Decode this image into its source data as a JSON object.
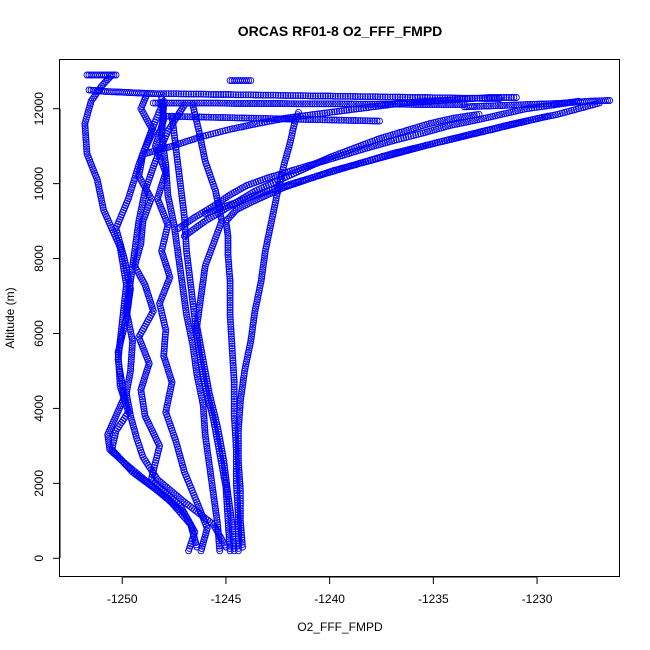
{
  "chart_data": {
    "type": "scatter",
    "title": "ORCAS RF01-8 O2_FFF_FMPD",
    "xlabel": "O2_FFF_FMPD",
    "ylabel": "Altitude (m)",
    "xlim": [
      -1253,
      -1226
    ],
    "ylim": [
      -500,
      13300
    ],
    "x_ticks": [
      -1250,
      -1245,
      -1240,
      -1235,
      -1230
    ],
    "y_ticks": [
      0,
      2000,
      4000,
      6000,
      8000,
      10000,
      12000
    ],
    "grid": false,
    "legend": "none",
    "marker": "open-circle",
    "colors": {
      "points": "#0000ff",
      "axis": "#000000"
    },
    "series": [
      {
        "x": [
          -1246.8,
          -1246.5,
          -1247.2,
          -1248.6,
          -1248.2,
          -1248.9,
          -1249.1,
          -1248.7,
          -1249.2,
          -1248.5,
          -1248.9,
          -1249.4,
          -1249.1,
          -1249.0,
          -1248.6,
          -1249.2,
          -1249.0,
          -1248.5,
          -1249.1,
          -1248.8
        ],
        "y": [
          200,
          700,
          1400,
          2100,
          3000,
          3800,
          4500,
          5200,
          5900,
          6600,
          7300,
          7800,
          8400,
          9000,
          9600,
          10200,
          10800,
          11400,
          12000,
          12400
        ]
      },
      {
        "x": [
          -1246.2,
          -1245.9,
          -1246.4,
          -1247.0,
          -1247.4,
          -1247.9,
          -1247.6,
          -1248.0,
          -1247.9,
          -1248.2,
          -1247.7,
          -1248.1,
          -1247.8,
          -1248.3,
          -1247.9,
          -1248.4,
          -1248.0,
          -1248.1
        ],
        "y": [
          200,
          800,
          1500,
          2300,
          3100,
          3900,
          4700,
          5400,
          6100,
          6800,
          7500,
          8200,
          8900,
          9600,
          10300,
          11000,
          11700,
          12300
        ]
      },
      {
        "x": [
          -1245.3,
          -1245.4,
          -1245.6,
          -1245.8,
          -1246.0,
          -1246.1,
          -1246.4,
          -1246.6,
          -1246.9,
          -1247.1,
          -1247.3,
          -1247.5,
          -1247.8,
          -1247.9,
          -1248.1,
          -1248.0
        ],
        "y": [
          200,
          900,
          1700,
          2500,
          3300,
          4100,
          4900,
          5700,
          6500,
          7300,
          8100,
          8900,
          9700,
          10500,
          11300,
          12100
        ]
      },
      {
        "x": [
          -1244.8,
          -1244.9,
          -1245.0,
          -1245.3,
          -1245.6,
          -1246.0,
          -1246.3,
          -1246.5,
          -1246.7,
          -1246.9,
          -1247.0,
          -1247.2,
          -1247.4,
          -1247.6
        ],
        "y": [
          200,
          1000,
          1900,
          2800,
          3700,
          4600,
          5500,
          6400,
          7300,
          8200,
          9100,
          10000,
          10900,
          11800
        ]
      },
      {
        "x": [
          -1244.6,
          -1244.7,
          -1244.9,
          -1245.1,
          -1245.4,
          -1245.8,
          -1246.1,
          -1246.4,
          -1246.2,
          -1246.0,
          -1245.6,
          -1245.2,
          -1245.5,
          -1246.0,
          -1246.3,
          -1246.6
        ],
        "y": [
          200,
          900,
          1700,
          2600,
          3500,
          4400,
          5300,
          6200,
          7000,
          7800,
          8400,
          9000,
          9800,
          10600,
          11400,
          12100
        ]
      },
      {
        "x": [
          -1245.0,
          -1245.6,
          -1247.0,
          -1248.3,
          -1249.0,
          -1249.3,
          -1249.6,
          -1249.8,
          -1249.6,
          -1249.5,
          -1249.8,
          -1249.6,
          -1249.4,
          -1249.2,
          -1248.9,
          -1248.4,
          -1247.8,
          -1247.0
        ],
        "y": [
          300,
          900,
          1500,
          2100,
          2700,
          3200,
          3800,
          4400,
          5000,
          5800,
          6600,
          7400,
          8200,
          9000,
          9800,
          10600,
          11400,
          12100
        ]
      },
      {
        "x": [
          -1246.4,
          -1246.7,
          -1247.8,
          -1249.5,
          -1250.5,
          -1250.3,
          -1249.7,
          -1250.1,
          -1250.2,
          -1249.8,
          -1249.6,
          -1249.9,
          -1250.3,
          -1249.7,
          -1249.2,
          -1248.6,
          -1248.0
        ],
        "y": [
          300,
          900,
          1600,
          2300,
          2900,
          3400,
          3900,
          4600,
          5500,
          6400,
          7200,
          8000,
          8800,
          9600,
          10500,
          11400,
          12200
        ]
      },
      {
        "x": [
          -1247.0,
          -1248.5,
          -1249.8,
          -1250.6,
          -1250.7,
          -1250.3,
          -1249.9,
          -1250.2,
          -1250.0,
          -1249.8,
          -1250.1,
          -1250.9,
          -1251.2,
          -1251.7,
          -1251.8,
          -1251.5,
          -1251.0,
          -1250.5
        ],
        "y": [
          1200,
          1900,
          2500,
          2900,
          3300,
          3800,
          4300,
          5300,
          6300,
          7300,
          8300,
          9300,
          10100,
          10800,
          11600,
          12200,
          12600,
          12900
        ]
      },
      {
        "x": [
          -1244.4,
          -1244.4,
          -1244.5,
          -1244.5,
          -1244.6,
          -1244.6,
          -1244.7,
          -1244.8,
          -1244.8,
          -1244.9,
          -1244.9,
          -1245.0,
          -1244.5,
          -1243.8,
          -1243.0,
          -1242.2,
          -1241.4,
          -1240.6,
          -1239.8,
          -1238.8,
          -1237.8,
          -1236.8,
          -1235.8,
          -1234.8,
          -1233.7,
          -1232.6,
          -1231.5,
          -1230.3,
          -1229.0,
          -1228.0,
          -1227.0
        ],
        "y": [
          200,
          1100,
          2000,
          2900,
          3800,
          4700,
          5600,
          6500,
          7400,
          8100,
          8600,
          9000,
          9300,
          9500,
          9700,
          9900,
          10050,
          10200,
          10350,
          10500,
          10650,
          10800,
          10950,
          11100,
          11250,
          11400,
          11550,
          11700,
          11850,
          12000,
          12150
        ]
      },
      {
        "x": [
          -1247.3,
          -1246.5,
          -1245.6,
          -1244.8,
          -1244.0,
          -1243.0,
          -1241.8,
          -1240.6,
          -1239.4,
          -1238.2,
          -1236.9,
          -1235.5,
          -1234.2,
          -1232.9,
          -1231.7,
          -1230.5,
          -1229.2,
          -1228.0
        ],
        "y": [
          8800,
          9100,
          9400,
          9700,
          9950,
          10150,
          10350,
          10550,
          10750,
          10950,
          11150,
          11350,
          11550,
          11700,
          11850,
          12000,
          12100,
          12200
        ]
      },
      {
        "x": [
          -1248.9,
          -1247.6,
          -1246.2,
          -1244.8,
          -1243.5,
          -1242.1,
          -1240.7,
          -1239.3,
          -1237.9,
          -1236.5,
          -1235.1,
          -1233.7,
          -1232.3,
          -1231.0
        ],
        "y": [
          10800,
          11000,
          11250,
          11450,
          11600,
          11750,
          11850,
          11950,
          12050,
          12150,
          12200,
          12250,
          12300,
          12300
        ]
      },
      {
        "x": [
          -1247.0,
          -1246.0,
          -1244.8,
          -1243.6,
          -1242.4,
          -1241.2,
          -1240.0,
          -1238.8,
          -1237.6,
          -1236.4,
          -1235.2,
          -1234.0,
          -1232.8
        ],
        "y": [
          8600,
          9000,
          9400,
          9800,
          10100,
          10400,
          10700,
          10950,
          11200,
          11400,
          11600,
          11750,
          11850
        ]
      },
      {
        "x": [
          -1246.0,
          -1244.5,
          -1243.0,
          -1241.5,
          -1240.0,
          -1238.5,
          -1237.0,
          -1235.5,
          -1234.0,
          -1232.5,
          -1231.0,
          -1229.5
        ],
        "y": [
          9200,
          9500,
          9800,
          10050,
          10300,
          10550,
          10800,
          11000,
          11200,
          11400,
          11600,
          11800
        ]
      },
      {
        "x": [
          -1244.2,
          -1244.3,
          -1244.3,
          -1244.4,
          -1244.4,
          -1244.3,
          -1244.1,
          -1243.8,
          -1243.6,
          -1243.3,
          -1243.1,
          -1242.8,
          -1242.5,
          -1242.2,
          -1241.9,
          -1241.7,
          -1241.5
        ],
        "y": [
          300,
          1000,
          1800,
          2600,
          3400,
          4200,
          5000,
          5800,
          6600,
          7400,
          8200,
          9000,
          9800,
          10500,
          11100,
          11600,
          11900
        ]
      },
      {
        "x": [
          -1251.6,
          -1251.2,
          -1250.8,
          -1250.4,
          -1250.0,
          -1249.6,
          -1249.2,
          -1248.8,
          -1248.4,
          -1248.0,
          -1247.4,
          -1246.8,
          -1246.2,
          -1245.6,
          -1245.0,
          -1244.4,
          -1243.8,
          -1243.2,
          -1242.6,
          -1242.0,
          -1241.4,
          -1240.8,
          -1240.2,
          -1239.6,
          -1239.0,
          -1238.4,
          -1237.8,
          -1237.2,
          -1236.6,
          -1236.0,
          -1235.4,
          -1234.8,
          -1234.2,
          -1233.6,
          -1233.0,
          -1232.4,
          -1231.8
        ],
        "y": [
          12500,
          12480,
          12460,
          12450,
          12440,
          12430,
          12420,
          12410,
          12400,
          12400,
          12400,
          12390,
          12390,
          12380,
          12380,
          12370,
          12370,
          12360,
          12360,
          12350,
          12350,
          12340,
          12340,
          12330,
          12330,
          12320,
          12320,
          12310,
          12310,
          12300,
          12300,
          12290,
          12290,
          12280,
          12280,
          12270,
          12270
        ]
      },
      {
        "x": [
          -1248.0,
          -1247.2,
          -1246.4,
          -1245.6,
          -1244.8,
          -1244.0,
          -1243.2,
          -1242.4,
          -1241.6,
          -1240.8,
          -1240.0,
          -1239.2,
          -1238.4,
          -1237.6
        ],
        "y": [
          11800,
          11790,
          11780,
          11770,
          11760,
          11750,
          11740,
          11730,
          11720,
          11710,
          11700,
          11690,
          11680,
          11670
        ]
      },
      {
        "x": [
          -1248.5,
          -1247.5,
          -1246.5,
          -1245.5,
          -1244.5,
          -1243.5,
          -1242.5,
          -1241.5,
          -1240.5,
          -1239.5,
          -1238.5,
          -1237.5,
          -1236.5,
          -1235.5,
          -1234.5,
          -1233.5
        ],
        "y": [
          12150,
          12150,
          12150,
          12150,
          12140,
          12140,
          12140,
          12130,
          12130,
          12130,
          12120,
          12120,
          12120,
          12110,
          12110,
          12110
        ]
      },
      {
        "x": [
          -1233.5,
          -1233.0,
          -1232.0,
          -1231.0,
          -1230.0,
          -1229.0,
          -1228.5,
          -1228.0,
          -1227.5,
          -1227.0,
          -1226.5
        ],
        "y": [
          12050,
          12060,
          12080,
          12100,
          12120,
          12140,
          12160,
          12180,
          12200,
          12210,
          12220
        ]
      },
      {
        "x": [
          -1244.8,
          -1244.6,
          -1244.4,
          -1244.2,
          -1244.0,
          -1243.8
        ],
        "y": [
          12750,
          12750,
          12750,
          12750,
          12750,
          12750
        ]
      },
      {
        "x": [
          -1251.7,
          -1251.3,
          -1250.9,
          -1250.5,
          -1250.3
        ],
        "y": [
          12900,
          12900,
          12900,
          12900,
          12900
        ]
      }
    ]
  }
}
